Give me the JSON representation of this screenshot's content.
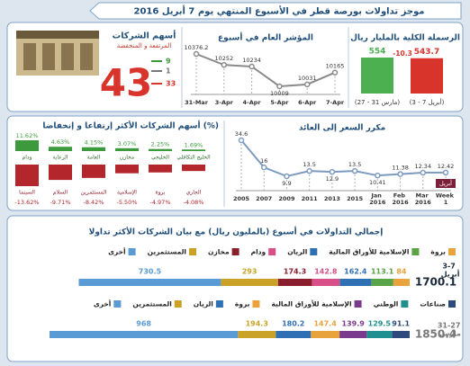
{
  "header": {
    "title": "موجز تداولات بورصة قطر في الأسبوع المنتهي يوم 7 أبريل 2016"
  },
  "chart_data": [
    {
      "type": "bar",
      "title": "الرسملة الكلية بالمليار ريال",
      "categories": [
        "(27 - 31 مارس)",
        "(3 - 7 أبريل)"
      ],
      "values": [
        554,
        543.7
      ],
      "colors": [
        "#4caf50",
        "#d9342b"
      ],
      "change": -10.3
    },
    {
      "type": "line",
      "title": "المؤشر العام في أسبوع",
      "categories": [
        "31-Mar",
        "3-Apr",
        "4-Apr",
        "5-Apr",
        "6-Apr",
        "7-Apr"
      ],
      "values": [
        10376.2,
        10252,
        10234,
        10009,
        10031,
        10165
      ],
      "color": "#8a8a8a"
    },
    {
      "type": "stat",
      "title": "أسهم الشركات",
      "subtitle": "المرتفعة و المنخفضة",
      "total": 43,
      "up": 9,
      "unchanged": 1,
      "down": 33
    },
    {
      "type": "diverging_bar",
      "title": "أسهم الشركات الأكثر إرتفاعا و إنخفاضا (%)",
      "gainers": {
        "categories": [
          "ودام",
          "الرعاية",
          "العامة",
          "مخازن",
          "الخليجي",
          "الخليج التكافلي"
        ],
        "values": [
          11.62,
          4.63,
          4.15,
          3.07,
          2.25,
          1.69
        ],
        "value_labels": [
          "11.62%",
          "4.63%",
          "4.15%",
          "3.07%",
          "2.25%",
          "1.69%"
        ],
        "color": "#3c9a3c"
      },
      "losers": {
        "categories": [
          "السينما",
          "السلام",
          "المستثمرين",
          "الإسلامية",
          "بروة",
          "الجاري"
        ],
        "values": [
          -13.62,
          -9.71,
          -8.42,
          -5.5,
          -4.97,
          -4.08
        ],
        "value_labels": [
          "-13.62%",
          "-9.71%",
          "-8.42%",
          "-5.50%",
          "-4.97%",
          "-4.08%"
        ],
        "color": "#b3262b"
      }
    },
    {
      "type": "line",
      "title": "مكرر السعر إلى العائد",
      "categories": [
        "2005",
        "2007",
        "2009",
        "2011",
        "2013",
        "2015",
        "Jan 2016",
        "Feb 2016",
        "Mar 2016",
        "Week 1"
      ],
      "values": [
        34.6,
        16,
        9.9,
        13.5,
        12.9,
        13.5,
        10.41,
        11.38,
        12.34,
        12.42
      ],
      "annotation": "أبريل",
      "color": "#7d9bc1"
    },
    {
      "type": "stacked_bar",
      "title": "إجمالي التداولات في أسبوع (بالمليون ريال) مع بيان الشركات الأكثر تداولا",
      "rows": [
        {
          "label": "3-7 أبريل",
          "total": 1700.1,
          "categories": [
            "بروة",
            "الإسلامية للأوراق المالية",
            "الريان",
            "ودام",
            "مخازن",
            "المستثمرين",
            "أخرى"
          ],
          "values": [
            84,
            113.1,
            162.4,
            142.8,
            174.3,
            293,
            730.5
          ],
          "colors": [
            "#e8a33d",
            "#5aa346",
            "#2f6fb4",
            "#d94f87",
            "#8b1e2d",
            "#c9a227",
            "#5b9bd5"
          ]
        },
        {
          "label": "31-27 مارس",
          "total": 1850.4,
          "categories": [
            "صناعات",
            "الوطني",
            "الإسلامية للأوراق المالية",
            "بروة",
            "الريان",
            "المستثمرين",
            "أخرى"
          ],
          "values": [
            91.1,
            129.5,
            139.9,
            147.4,
            180.2,
            194.3,
            968
          ],
          "colors": [
            "#2e4a7d",
            "#1f8f8f",
            "#7a3b8f",
            "#e8a33d",
            "#2f6fb4",
            "#c9a227",
            "#5b9bd5"
          ]
        }
      ]
    }
  ]
}
